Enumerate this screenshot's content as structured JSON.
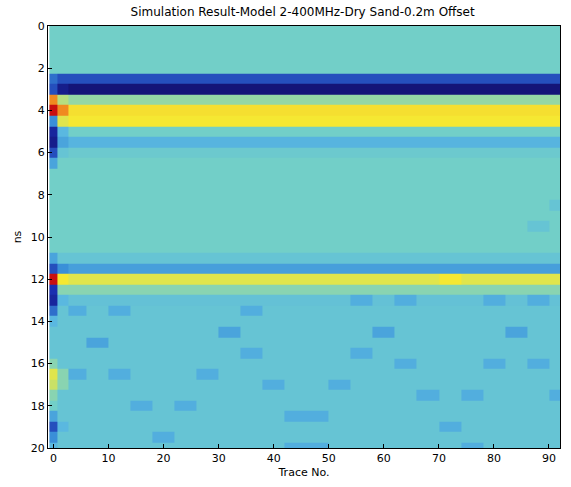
{
  "chart_data": {
    "type": "heatmap",
    "title": "Simulation Result-Model 2-400MHz-Dry Sand-0.2m Offset",
    "x_label": "Trace No.",
    "y_label": "ns",
    "x": [
      0,
      1.5,
      4,
      8,
      12,
      16,
      20,
      24,
      28,
      32,
      36,
      40,
      44,
      48,
      52,
      56,
      60,
      64,
      68,
      72,
      76,
      80,
      84,
      88,
      92
    ],
    "y": [
      0,
      0.5,
      1,
      1.5,
      2,
      2.5,
      3,
      3.5,
      4,
      4.5,
      5,
      5.5,
      6,
      6.5,
      7,
      7.5,
      8,
      8.5,
      9,
      9.5,
      10,
      10.5,
      11,
      11.5,
      12,
      12.5,
      13,
      13.5,
      14,
      14.5,
      15,
      15.5,
      16,
      16.5,
      17,
      17.5,
      18,
      18.5,
      19,
      19.5,
      20
    ],
    "z": [
      [
        0,
        0,
        0,
        0,
        0,
        0,
        0,
        0,
        0,
        0,
        0,
        0,
        0,
        0,
        0,
        0,
        0,
        0,
        0,
        0,
        0,
        0,
        0,
        0,
        0
      ],
      [
        0,
        0,
        0,
        0,
        0,
        0,
        0,
        0,
        0,
        0,
        0,
        0,
        0,
        0,
        0,
        0,
        0,
        0,
        0,
        0,
        0,
        0,
        0,
        0,
        0
      ],
      [
        0,
        0,
        0,
        0,
        0,
        0,
        0,
        0,
        0,
        0,
        0,
        0,
        0,
        0,
        0,
        0,
        0,
        0,
        0,
        0,
        0,
        0,
        0,
        0,
        0
      ],
      [
        0,
        0,
        0,
        0,
        0,
        0,
        0,
        0,
        0,
        0,
        0,
        0,
        0,
        0,
        0,
        0,
        0,
        0,
        0,
        0,
        0,
        0,
        0,
        0,
        0
      ],
      [
        0,
        0,
        0,
        0,
        0,
        0,
        0,
        0,
        0,
        0,
        0,
        0,
        0,
        0,
        0,
        0,
        0,
        0,
        0,
        0,
        0,
        0,
        0,
        0,
        0
      ],
      [
        -0.5,
        -0.6,
        -0.6,
        -0.6,
        -0.6,
        -0.6,
        -0.6,
        -0.6,
        -0.6,
        -0.6,
        -0.6,
        -0.6,
        -0.6,
        -0.6,
        -0.6,
        -0.6,
        -0.6,
        -0.6,
        -0.6,
        -0.6,
        -0.6,
        -0.6,
        -0.6,
        -0.6,
        -0.6
      ],
      [
        -0.6,
        -0.9,
        -1,
        -1,
        -1,
        -1,
        -1,
        -1,
        -1,
        -1,
        -1,
        -1,
        -1,
        -1,
        -1,
        -1,
        -1,
        -1,
        -1,
        -1,
        -1,
        -1,
        -1,
        -1,
        -1
      ],
      [
        0.8,
        0.3,
        0.15,
        0.15,
        0.15,
        0.15,
        0.15,
        0.15,
        0.15,
        0.15,
        0.15,
        0.15,
        0.15,
        0.15,
        0.15,
        0.15,
        0.15,
        0.15,
        0.15,
        0.15,
        0.15,
        0.15,
        0.15,
        0.15,
        0.15
      ],
      [
        1,
        0.8,
        0.62,
        0.62,
        0.62,
        0.62,
        0.62,
        0.62,
        0.62,
        0.62,
        0.62,
        0.62,
        0.62,
        0.62,
        0.62,
        0.62,
        0.62,
        0.62,
        0.62,
        0.62,
        0.62,
        0.62,
        0.62,
        0.62,
        0.62
      ],
      [
        -0.4,
        0.5,
        0.6,
        0.6,
        0.6,
        0.6,
        0.6,
        0.6,
        0.6,
        0.6,
        0.6,
        0.6,
        0.6,
        0.6,
        0.6,
        0.6,
        0.6,
        0.6,
        0.6,
        0.6,
        0.6,
        0.6,
        0.6,
        0.6,
        0.6
      ],
      [
        -0.8,
        -0.2,
        0,
        0,
        0,
        0,
        0,
        0,
        0,
        0,
        0,
        0,
        0,
        0,
        0,
        0,
        0,
        0,
        0,
        0,
        0,
        0,
        0,
        0,
        0
      ],
      [
        -0.9,
        -0.3,
        -0.22,
        -0.22,
        -0.22,
        -0.22,
        -0.22,
        -0.22,
        -0.22,
        -0.22,
        -0.22,
        -0.22,
        -0.22,
        -0.22,
        -0.22,
        -0.22,
        -0.22,
        -0.22,
        -0.22,
        -0.22,
        -0.22,
        -0.22,
        -0.22,
        -0.22,
        -0.22
      ],
      [
        -0.6,
        -0.1,
        -0.05,
        -0.05,
        -0.05,
        -0.05,
        -0.05,
        -0.05,
        -0.05,
        -0.05,
        -0.05,
        -0.05,
        -0.05,
        -0.05,
        -0.05,
        -0.05,
        -0.05,
        -0.05,
        -0.05,
        -0.05,
        -0.05,
        -0.05,
        -0.05,
        -0.05,
        -0.05
      ],
      [
        -0.3,
        0,
        0,
        0,
        0,
        0,
        0,
        0,
        0,
        0,
        0,
        0,
        0,
        0,
        0,
        0,
        0,
        0,
        0,
        0,
        0,
        0,
        0,
        0,
        0
      ],
      [
        0,
        0,
        0,
        0,
        0,
        0,
        0,
        0,
        0,
        0,
        0,
        0,
        0,
        0,
        0,
        0,
        0,
        0,
        0,
        0,
        0,
        0,
        0,
        0,
        0
      ],
      [
        0,
        0,
        0,
        0,
        0,
        0,
        0,
        0,
        0,
        0,
        0,
        0,
        0,
        0,
        0,
        0,
        0,
        0,
        0,
        0,
        0,
        0,
        0,
        0,
        0
      ],
      [
        0,
        0,
        0,
        0,
        0,
        0,
        0,
        0,
        0,
        0,
        0,
        0,
        0,
        0,
        0,
        0,
        0,
        0,
        0,
        0,
        0,
        0,
        0,
        0,
        0
      ],
      [
        0,
        0,
        0,
        0,
        0,
        0,
        0,
        0,
        0,
        0,
        0,
        0,
        0,
        0,
        0,
        0,
        0,
        0,
        0,
        0,
        0,
        0,
        0,
        0,
        -0.1
      ],
      [
        0,
        0,
        0,
        0,
        0,
        0,
        0,
        0,
        0,
        0,
        0,
        0,
        0,
        0,
        0,
        0,
        0,
        0,
        0,
        0,
        0,
        0,
        0,
        0,
        0
      ],
      [
        0,
        0,
        0,
        0,
        0,
        0,
        0,
        0,
        0,
        0,
        0,
        0,
        0,
        0,
        0,
        0,
        0,
        0,
        0,
        0,
        0,
        0,
        0,
        -0.1,
        0
      ],
      [
        0,
        0,
        0,
        0,
        0,
        0,
        0,
        0,
        0,
        0,
        0,
        0,
        0,
        0,
        0,
        0,
        0,
        0,
        0,
        0,
        0,
        0,
        0,
        0,
        0
      ],
      [
        0,
        0,
        0,
        0,
        0,
        0,
        0,
        0,
        0,
        0,
        0,
        0,
        0,
        0,
        0,
        0,
        0,
        0,
        0,
        0,
        0,
        0,
        0,
        0,
        0
      ],
      [
        -0.3,
        -0.1,
        -0.1,
        -0.1,
        -0.1,
        -0.1,
        -0.1,
        -0.1,
        -0.1,
        -0.1,
        -0.1,
        -0.1,
        -0.1,
        -0.1,
        -0.1,
        -0.1,
        -0.1,
        -0.1,
        -0.1,
        -0.1,
        -0.1,
        -0.1,
        -0.1,
        -0.1,
        -0.1
      ],
      [
        -0.6,
        -0.4,
        -0.32,
        -0.32,
        -0.32,
        -0.32,
        -0.32,
        -0.32,
        -0.32,
        -0.32,
        -0.32,
        -0.32,
        -0.32,
        -0.32,
        -0.32,
        -0.32,
        -0.32,
        -0.32,
        -0.32,
        -0.32,
        -0.32,
        -0.32,
        -0.32,
        -0.32,
        -0.32
      ],
      [
        1,
        0.6,
        0.5,
        0.5,
        0.5,
        0.5,
        0.5,
        0.5,
        0.5,
        0.5,
        0.5,
        0.5,
        0.5,
        0.5,
        0.5,
        0.5,
        0.5,
        0.5,
        0.5,
        0.6,
        0.5,
        0.5,
        0.5,
        0.5,
        0.5
      ],
      [
        -0.7,
        0.1,
        0.1,
        0.1,
        0.1,
        0.1,
        0.1,
        0.1,
        0.1,
        0.1,
        0.1,
        0.1,
        0.1,
        0.1,
        0.1,
        0.1,
        0.1,
        0.1,
        0.1,
        0.1,
        0.1,
        0.1,
        0.1,
        0.1,
        0.1
      ],
      [
        -0.8,
        -0.2,
        -0.12,
        -0.12,
        -0.12,
        -0.12,
        -0.12,
        -0.12,
        -0.12,
        -0.12,
        -0.12,
        -0.12,
        -0.12,
        -0.12,
        -0.12,
        -0.25,
        -0.12,
        -0.25,
        -0.12,
        -0.12,
        -0.12,
        -0.25,
        -0.12,
        -0.25,
        -0.12
      ],
      [
        -0.5,
        -0.1,
        -0.25,
        -0.1,
        -0.25,
        -0.1,
        -0.1,
        -0.1,
        -0.1,
        -0.1,
        -0.25,
        -0.1,
        -0.1,
        -0.1,
        -0.1,
        -0.1,
        -0.1,
        -0.1,
        -0.1,
        -0.1,
        -0.1,
        -0.1,
        -0.1,
        -0.1,
        -0.1
      ],
      [
        -0.2,
        -0.1,
        -0.1,
        -0.1,
        -0.1,
        -0.1,
        -0.1,
        -0.1,
        -0.1,
        -0.1,
        -0.1,
        -0.1,
        -0.1,
        -0.1,
        -0.1,
        -0.1,
        -0.1,
        -0.1,
        -0.1,
        -0.1,
        -0.1,
        -0.1,
        -0.1,
        -0.1,
        -0.1
      ],
      [
        -0.1,
        -0.1,
        -0.1,
        -0.1,
        -0.1,
        -0.1,
        -0.1,
        -0.1,
        -0.1,
        -0.3,
        -0.1,
        -0.1,
        -0.1,
        -0.1,
        -0.1,
        -0.1,
        -0.3,
        -0.1,
        -0.1,
        -0.1,
        -0.1,
        -0.1,
        -0.3,
        -0.1,
        -0.1
      ],
      [
        -0.1,
        -0.1,
        -0.1,
        -0.3,
        -0.1,
        -0.1,
        -0.1,
        -0.1,
        -0.1,
        -0.1,
        -0.1,
        -0.1,
        -0.1,
        -0.1,
        -0.1,
        -0.1,
        -0.1,
        -0.1,
        -0.1,
        -0.1,
        -0.1,
        -0.1,
        -0.1,
        -0.1,
        -0.1
      ],
      [
        -0.1,
        -0.1,
        -0.1,
        -0.1,
        -0.1,
        -0.1,
        -0.1,
        -0.1,
        -0.1,
        -0.1,
        -0.25,
        -0.1,
        -0.1,
        -0.1,
        -0.1,
        -0.25,
        -0.1,
        -0.1,
        -0.1,
        -0.1,
        -0.1,
        -0.1,
        -0.1,
        -0.1,
        -0.1
      ],
      [
        0.1,
        -0.1,
        -0.1,
        -0.1,
        -0.1,
        -0.1,
        -0.1,
        -0.1,
        -0.1,
        -0.1,
        -0.1,
        -0.1,
        -0.1,
        -0.1,
        -0.1,
        -0.1,
        -0.1,
        -0.25,
        -0.1,
        -0.1,
        -0.1,
        -0.25,
        -0.1,
        -0.25,
        -0.1
      ],
      [
        0.5,
        0.1,
        -0.25,
        -0.1,
        -0.25,
        -0.1,
        -0.1,
        -0.1,
        -0.25,
        -0.1,
        -0.1,
        -0.1,
        -0.1,
        -0.1,
        -0.1,
        -0.1,
        -0.1,
        -0.1,
        -0.1,
        -0.1,
        -0.1,
        -0.1,
        -0.1,
        -0.1,
        -0.1
      ],
      [
        0.4,
        0.1,
        -0.1,
        -0.1,
        -0.1,
        -0.1,
        -0.1,
        -0.1,
        -0.1,
        -0.1,
        -0.1,
        -0.25,
        -0.1,
        -0.1,
        -0.25,
        -0.1,
        -0.1,
        -0.1,
        -0.1,
        -0.1,
        -0.1,
        -0.1,
        -0.1,
        -0.1,
        -0.1
      ],
      [
        0.1,
        -0.1,
        -0.1,
        -0.1,
        -0.1,
        -0.1,
        -0.1,
        -0.1,
        -0.1,
        -0.1,
        -0.1,
        -0.1,
        -0.1,
        -0.1,
        -0.1,
        -0.1,
        -0.1,
        -0.1,
        -0.25,
        -0.1,
        -0.25,
        -0.1,
        -0.1,
        -0.1,
        -0.25
      ],
      [
        0,
        -0.1,
        -0.1,
        -0.1,
        -0.1,
        -0.25,
        -0.1,
        -0.25,
        -0.1,
        -0.1,
        -0.1,
        -0.1,
        -0.1,
        -0.1,
        -0.1,
        -0.1,
        -0.1,
        -0.1,
        -0.1,
        -0.1,
        -0.1,
        -0.1,
        -0.1,
        -0.1,
        -0.1
      ],
      [
        -0.3,
        -0.1,
        -0.1,
        -0.1,
        -0.1,
        -0.1,
        -0.1,
        -0.1,
        -0.1,
        -0.1,
        -0.1,
        -0.1,
        -0.25,
        -0.25,
        -0.1,
        -0.1,
        -0.1,
        -0.1,
        -0.1,
        -0.1,
        -0.1,
        -0.1,
        -0.1,
        -0.1,
        -0.1
      ],
      [
        -0.6,
        -0.2,
        -0.1,
        -0.1,
        -0.1,
        -0.1,
        -0.1,
        -0.1,
        -0.1,
        -0.1,
        -0.1,
        -0.1,
        -0.1,
        -0.1,
        -0.1,
        -0.1,
        -0.1,
        -0.1,
        -0.1,
        -0.25,
        -0.1,
        -0.1,
        -0.1,
        -0.1,
        -0.1
      ],
      [
        -0.4,
        -0.1,
        -0.1,
        -0.1,
        -0.1,
        -0.1,
        -0.25,
        -0.1,
        -0.1,
        -0.1,
        -0.1,
        -0.1,
        -0.1,
        -0.1,
        -0.1,
        -0.1,
        -0.1,
        -0.1,
        -0.1,
        -0.1,
        -0.1,
        -0.1,
        -0.1,
        -0.1,
        -0.1
      ],
      [
        -0.2,
        -0.1,
        -0.1,
        -0.1,
        -0.1,
        -0.1,
        -0.1,
        -0.1,
        -0.1,
        -0.1,
        -0.1,
        -0.1,
        -0.25,
        -0.25,
        -0.1,
        -0.1,
        -0.1,
        -0.1,
        -0.1,
        -0.1,
        -0.25,
        -0.1,
        -0.1,
        -0.1,
        -0.1
      ]
    ],
    "zlim": [
      -1,
      1
    ],
    "xlim": [
      -1,
      92
    ],
    "ylim": [
      20,
      0
    ],
    "xticks": [
      0,
      10,
      20,
      30,
      40,
      50,
      60,
      70,
      80,
      90
    ],
    "yticks": [
      0,
      2,
      4,
      6,
      8,
      10,
      12,
      14,
      16,
      18,
      20
    ],
    "grid": false
  }
}
